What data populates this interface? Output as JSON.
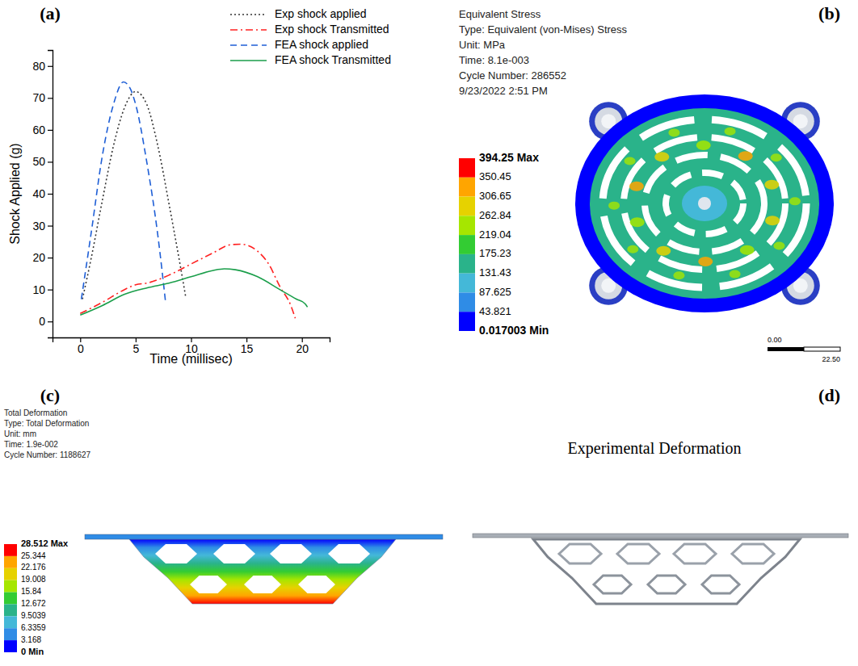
{
  "panel_letters": [
    "(a)",
    "(b)",
    "(c)",
    "(d)"
  ],
  "chart_data": {
    "type": "line",
    "x_label": "Time (millisec)",
    "y_label": "Shock Applied (g)",
    "xlim": [
      -2.5,
      22.5
    ],
    "xticks": [
      0,
      5,
      10,
      15,
      20
    ],
    "ylim": [
      -5,
      85
    ],
    "yticks": [
      0,
      10,
      20,
      30,
      40,
      50,
      60,
      70,
      80
    ],
    "legend": "upper right",
    "grid": false,
    "series": [
      {
        "name": "Exp shock applied",
        "color": "#333333",
        "line_style": "dotted",
        "x": [
          0.2,
          1,
          2,
          3,
          4,
          5,
          6,
          7,
          8,
          9,
          9.5
        ],
        "values": [
          7,
          20,
          38,
          55,
          67,
          72,
          68,
          55,
          37,
          18,
          8
        ]
      },
      {
        "name": "Exp shock Transmitted",
        "color": "#ff2020",
        "line_style": "dashdot",
        "x": [
          0,
          2,
          4,
          5,
          6,
          8,
          10,
          12,
          13.5,
          14.5,
          16,
          17,
          18,
          19,
          19.4
        ],
        "values": [
          2.5,
          6,
          10,
          11.5,
          12,
          14.5,
          18,
          21.5,
          24,
          24.2,
          22,
          18,
          11,
          5,
          1
        ]
      },
      {
        "name": "FEA shock applied",
        "color": "#1f5fd6",
        "line_style": "dashed",
        "x": [
          0.1,
          1,
          2,
          3,
          3.9,
          4.5,
          5,
          6,
          7,
          7.7
        ],
        "values": [
          7,
          28,
          52,
          68,
          75,
          73,
          68,
          50,
          27,
          6
        ]
      },
      {
        "name": "FEA shock Transmitted",
        "color": "#1a9e4a",
        "line_style": "solid",
        "x": [
          0,
          2,
          4,
          6,
          8,
          10,
          12,
          13,
          14,
          16,
          18,
          19.5,
          20.3,
          20.5
        ],
        "values": [
          2,
          5,
          8.5,
          10.5,
          12,
          14,
          16,
          16.5,
          16.2,
          14,
          10,
          7,
          5.5,
          4.5
        ]
      }
    ]
  },
  "stress_panel": {
    "info": [
      "Equivalent Stress",
      "Type: Equivalent (von-Mises) Stress",
      "Unit: MPa",
      "Time: 8.1e-003",
      "Cycle Number: 286552",
      "9/23/2022 2:51 PM"
    ],
    "color_bar": {
      "ticks": [
        {
          "value": 394.25,
          "label": "394.25 Max"
        },
        350.45,
        306.65,
        262.84,
        219.04,
        175.23,
        131.43,
        87.625,
        43.821,
        {
          "value": 0.017003,
          "label": "0.017003 Min"
        }
      ],
      "colors": [
        "#ff0000",
        "#ffa500",
        "#e6d200",
        "#a6e600",
        "#33cc33",
        "#2ab38a",
        "#44b8d8",
        "#2f8ce6",
        "#0000ff"
      ]
    },
    "scale_bar_labels": [
      "0.00",
      "22.50"
    ]
  },
  "deformation_panel": {
    "info": [
      "Total Deformation",
      "Type: Total Deformation",
      "Unit: mm",
      "Time: 1.9e-002",
      "Cycle Number: 1188627"
    ],
    "color_bar": {
      "ticks": [
        {
          "value": 28.512,
          "label": "28.512 Max"
        },
        25.344,
        22.176,
        19.008,
        15.84,
        12.672,
        9.5039,
        6.3359,
        3.168,
        {
          "value": 0,
          "label": "0 Min"
        }
      ],
      "colors": [
        "#ff0000",
        "#ffa500",
        "#e6d200",
        "#a6e600",
        "#33cc33",
        "#2ab38a",
        "#44b8d8",
        "#2f8ce6",
        "#0000ff"
      ]
    }
  },
  "photo_panel": {
    "title": "Experimental Deformation"
  }
}
